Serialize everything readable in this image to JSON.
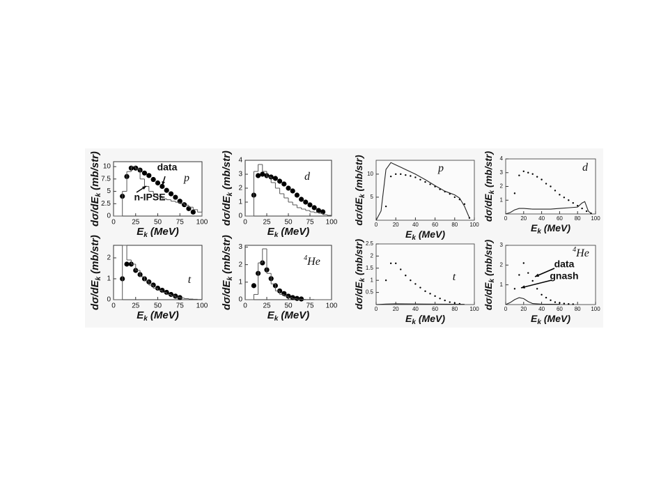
{
  "chart_data": [
    {
      "type": "scatter",
      "panel_label": "p",
      "xlabel": {
        "symbol": "E",
        "sub": "k",
        "unit": "(MeV)"
      },
      "ylabel": {
        "symbol": "dσ/dE",
        "sub": "k",
        "unit": "(mb/str)"
      },
      "xlim": [
        0,
        100
      ],
      "ylim": [
        0,
        11
      ],
      "xticks": [
        0,
        25,
        50,
        75,
        100
      ],
      "yticks": [
        0,
        2.5,
        5,
        7.5,
        10
      ],
      "annotations": [
        "data",
        "n-IPSE"
      ],
      "series": [
        {
          "kind": "points",
          "color": "#000000",
          "x": [
            10,
            15,
            20,
            25,
            30,
            35,
            40,
            45,
            50,
            55,
            60,
            65,
            70,
            75,
            80,
            85,
            90
          ],
          "values": [
            4,
            8,
            9.7,
            9.7,
            9.3,
            8.7,
            8.2,
            7.4,
            6.7,
            6.0,
            5.2,
            4.5,
            3.8,
            3.0,
            2.3,
            1.5,
            0.8
          ]
        },
        {
          "kind": "step",
          "color": "#555555",
          "bins": [
            0,
            5,
            10,
            15,
            20,
            25,
            30,
            35,
            40,
            45,
            50,
            55,
            60,
            65,
            70,
            75,
            80,
            85,
            90,
            95,
            100
          ],
          "values": [
            0,
            0,
            5,
            9,
            10,
            9.5,
            7.5,
            6,
            5,
            4.5,
            4,
            3.5,
            3.3,
            3,
            2.8,
            2.5,
            2.2,
            1.8,
            1.3,
            0.8
          ]
        }
      ]
    },
    {
      "type": "scatter",
      "panel_label": "d",
      "xlabel": {
        "symbol": "E",
        "sub": "k",
        "unit": "(MeV)"
      },
      "ylabel": {
        "symbol": "dσ/dE",
        "sub": "k",
        "unit": "(mb/str)"
      },
      "xlim": [
        0,
        100
      ],
      "ylim": [
        0,
        4
      ],
      "xticks": [
        0,
        25,
        50,
        75,
        100
      ],
      "yticks": [
        0,
        1,
        2,
        3,
        4
      ],
      "series": [
        {
          "kind": "points",
          "color": "#000000",
          "x": [
            10,
            15,
            20,
            25,
            30,
            35,
            40,
            45,
            50,
            55,
            60,
            65,
            70,
            75,
            80,
            85,
            90
          ],
          "values": [
            1.5,
            2.9,
            3.0,
            2.9,
            2.8,
            2.7,
            2.5,
            2.3,
            2.0,
            1.8,
            1.5,
            1.2,
            1.0,
            0.8,
            0.6,
            0.4,
            0.3
          ]
        },
        {
          "kind": "step",
          "color": "#555555",
          "bins": [
            0,
            5,
            10,
            15,
            20,
            25,
            30,
            35,
            40,
            45,
            50,
            55,
            60,
            65,
            70,
            75,
            80,
            85,
            90,
            95,
            100
          ],
          "values": [
            0,
            0,
            3.2,
            3.7,
            3.2,
            2.8,
            2.4,
            2.0,
            1.6,
            1.3,
            1.0,
            0.8,
            0.6,
            0.5,
            0.4,
            0.3,
            0.25,
            0.2,
            0.1,
            0.05
          ]
        }
      ]
    },
    {
      "type": "scatter",
      "panel_label": "t",
      "xlabel": {
        "symbol": "E",
        "sub": "k",
        "unit": "(MeV)"
      },
      "ylabel": {
        "symbol": "dσ/dE",
        "sub": "k",
        "unit": "(mb/str)"
      },
      "xlim": [
        0,
        100
      ],
      "ylim": [
        0,
        2.6
      ],
      "xticks": [
        0,
        25,
        50,
        75,
        100
      ],
      "yticks": [
        0,
        1,
        2
      ],
      "series": [
        {
          "kind": "points",
          "color": "#000000",
          "x": [
            10,
            15,
            20,
            25,
            30,
            35,
            40,
            45,
            50,
            55,
            60,
            65,
            70,
            75
          ],
          "values": [
            1.0,
            1.7,
            1.7,
            1.4,
            1.2,
            1.0,
            0.85,
            0.7,
            0.55,
            0.45,
            0.35,
            0.25,
            0.17,
            0.1
          ]
        },
        {
          "kind": "step",
          "color": "#555555",
          "bins": [
            0,
            5,
            10,
            15,
            20,
            25,
            30,
            35,
            40,
            45,
            50,
            55,
            60,
            65,
            70,
            75,
            80,
            85,
            90,
            95,
            100
          ],
          "values": [
            0,
            0,
            2.6,
            1.9,
            1.7,
            1.4,
            1.1,
            0.9,
            0.7,
            0.55,
            0.45,
            0.35,
            0.25,
            0.18,
            0.12,
            0.08,
            0.05,
            0.03,
            0.02,
            0.01
          ]
        }
      ]
    },
    {
      "type": "scatter",
      "panel_label": "He",
      "panel_label_sup": "4",
      "xlabel": {
        "symbol": "E",
        "sub": "k",
        "unit": "(MeV)"
      },
      "ylabel": {
        "symbol": "dσ/dE",
        "sub": "k",
        "unit": "(mb/str)"
      },
      "xlim": [
        0,
        100
      ],
      "ylim": [
        0,
        3.1
      ],
      "xticks": [
        0,
        25,
        50,
        75,
        100
      ],
      "yticks": [
        0,
        1,
        2,
        3
      ],
      "series": [
        {
          "kind": "points",
          "color": "#000000",
          "x": [
            10,
            15,
            20,
            25,
            30,
            35,
            40,
            45,
            50,
            55,
            60,
            65
          ],
          "values": [
            0.8,
            1.5,
            2.1,
            1.7,
            1.2,
            0.8,
            0.5,
            0.35,
            0.2,
            0.12,
            0.07,
            0.04
          ]
        },
        {
          "kind": "step",
          "color": "#555555",
          "bins": [
            0,
            5,
            10,
            15,
            20,
            25,
            30,
            35,
            40,
            45,
            50,
            55,
            60,
            65,
            70,
            75,
            80,
            85,
            90,
            95,
            100
          ],
          "values": [
            0,
            0,
            0.3,
            2.1,
            2.9,
            1.5,
            0.9,
            0.5,
            0.3,
            0.2,
            0.1,
            0.05,
            0.03,
            0.02,
            0.01,
            0.01,
            0,
            0,
            0,
            0
          ]
        }
      ]
    },
    {
      "type": "scatter",
      "panel_label": "p",
      "xlabel": {
        "symbol": "E",
        "sub": "k",
        "unit": "(MeV)"
      },
      "ylabel": {
        "symbol": "dσ/dE",
        "sub": "k",
        "unit": "(mb/str)"
      },
      "xlim": [
        0,
        100
      ],
      "ylim": [
        0,
        13
      ],
      "xticks": [
        0,
        20,
        40,
        60,
        80,
        100
      ],
      "yticks": [
        5,
        10
      ],
      "series": [
        {
          "kind": "points",
          "color": "#000000",
          "x": [
            10,
            15,
            20,
            25,
            30,
            35,
            40,
            45,
            50,
            55,
            60,
            65,
            70,
            75,
            80,
            85,
            90,
            95
          ],
          "values": [
            3,
            9.5,
            10,
            10,
            9.8,
            9.6,
            9.3,
            8.8,
            8.3,
            7.8,
            7.3,
            6.7,
            6.2,
            5.7,
            5.0,
            4.5,
            3.5,
            0.5
          ]
        },
        {
          "kind": "line",
          "color": "#222222",
          "x": [
            0,
            5,
            10,
            15,
            20,
            25,
            30,
            40,
            50,
            60,
            70,
            80,
            85,
            90,
            95
          ],
          "values": [
            0,
            2,
            11,
            12.5,
            12,
            11.5,
            11,
            10,
            8.8,
            7.5,
            6.3,
            5.5,
            4.8,
            3,
            0.5
          ]
        }
      ]
    },
    {
      "type": "scatter",
      "panel_label": "d",
      "xlabel": {
        "symbol": "E",
        "sub": "k",
        "unit": "(MeV)"
      },
      "ylabel": {
        "symbol": "dσ/dE",
        "sub": "k",
        "unit": "(mb/str)"
      },
      "xlim": [
        0,
        100
      ],
      "ylim": [
        0,
        4
      ],
      "xticks": [
        0,
        20,
        40,
        60,
        80,
        100
      ],
      "yticks": [
        1,
        2,
        3,
        4
      ],
      "series": [
        {
          "kind": "points",
          "color": "#000000",
          "x": [
            10,
            15,
            20,
            25,
            30,
            35,
            40,
            45,
            50,
            55,
            60,
            65,
            70,
            75,
            80,
            85,
            90,
            95
          ],
          "values": [
            1.5,
            2.8,
            3.1,
            3.0,
            2.9,
            2.7,
            2.5,
            2.2,
            2.0,
            1.7,
            1.4,
            1.2,
            1.0,
            0.8,
            0.6,
            0.4,
            0.2,
            0.05
          ]
        },
        {
          "kind": "line",
          "color": "#222222",
          "x": [
            0,
            5,
            10,
            15,
            20,
            30,
            40,
            50,
            60,
            70,
            80,
            85,
            88,
            92,
            95
          ],
          "values": [
            0,
            0.1,
            0.3,
            0.4,
            0.4,
            0.35,
            0.35,
            0.35,
            0.4,
            0.45,
            0.5,
            0.8,
            0.9,
            0.2,
            0.05
          ]
        }
      ]
    },
    {
      "type": "scatter",
      "panel_label": "t",
      "xlabel": {
        "symbol": "E",
        "sub": "k",
        "unit": "(MeV)"
      },
      "ylabel": {
        "symbol": "dσ/dE",
        "sub": "k",
        "unit": "(mb/str)"
      },
      "xlim": [
        0,
        100
      ],
      "ylim": [
        0,
        2.5
      ],
      "xticks": [
        0,
        20,
        40,
        60,
        80,
        100
      ],
      "yticks": [
        0.5,
        1,
        1.5,
        2,
        2.5
      ],
      "series": [
        {
          "kind": "points",
          "color": "#000000",
          "x": [
            10,
            15,
            20,
            25,
            30,
            35,
            40,
            45,
            50,
            55,
            60,
            65,
            70,
            75,
            80,
            85
          ],
          "values": [
            1.0,
            1.7,
            1.7,
            1.45,
            1.2,
            1.0,
            0.85,
            0.7,
            0.55,
            0.45,
            0.35,
            0.25,
            0.17,
            0.1,
            0.06,
            0.03
          ]
        },
        {
          "kind": "line",
          "color": "#222222",
          "x": [
            0,
            10,
            20,
            50,
            90
          ],
          "values": [
            0,
            0.02,
            0.03,
            0.02,
            0.01
          ]
        }
      ]
    },
    {
      "type": "scatter",
      "panel_label": "He",
      "panel_label_sup": "4",
      "xlabel": {
        "symbol": "E",
        "sub": "k",
        "unit": "(MeV)"
      },
      "ylabel": {
        "symbol": "dσ/dE",
        "sub": "k",
        "unit": "(mb/str)"
      },
      "xlim": [
        0,
        100
      ],
      "ylim": [
        0,
        3
      ],
      "xticks": [
        0,
        20,
        40,
        60,
        80,
        100
      ],
      "yticks": [
        1,
        2,
        3
      ],
      "annotations": [
        "data",
        "gnash"
      ],
      "series": [
        {
          "kind": "points",
          "color": "#000000",
          "x": [
            10,
            15,
            20,
            25,
            30,
            35,
            40,
            45,
            50,
            55,
            60,
            65,
            70,
            75
          ],
          "values": [
            0.8,
            1.5,
            2.1,
            1.6,
            1.2,
            0.8,
            0.5,
            0.35,
            0.22,
            0.12,
            0.08,
            0.05,
            0.03,
            0.02
          ]
        },
        {
          "kind": "line",
          "color": "#222222",
          "x": [
            0,
            5,
            10,
            15,
            20,
            25,
            30,
            40,
            60
          ],
          "values": [
            0,
            0.1,
            0.25,
            0.35,
            0.3,
            0.15,
            0.05,
            0.02,
            0.01
          ]
        }
      ]
    }
  ]
}
